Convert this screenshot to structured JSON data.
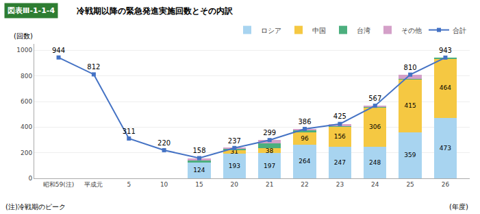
{
  "chart_data": {
    "type": "bar",
    "stacked": true,
    "title": "冷戦期以降の緊急発進実施回数とその内訳",
    "ylabel": "(回数)",
    "xlabel": "(年度)",
    "annotations": [
      {
        "text": "図表Ⅲ-1-1-4",
        "color": "#2e7d32"
      },
      {
        "text": "(注)冷戦期のピーク"
      }
    ],
    "categories": [
      "昭和59(注)",
      "平成元",
      "5",
      "10",
      "15",
      "20",
      "21",
      "22",
      "23",
      "24",
      "25",
      "26"
    ],
    "series": [
      {
        "name": "ロシア",
        "color": "#a8d4f0",
        "values": [
          null,
          null,
          null,
          null,
          124,
          193,
          197,
          264,
          247,
          248,
          359,
          473
        ],
        "value_labels": [
          null,
          null,
          null,
          null,
          "124",
          "193",
          "197",
          "264",
          "247",
          "248",
          "359",
          "473"
        ]
      },
      {
        "name": "中国",
        "color": "#f5c842",
        "values": [
          null,
          null,
          null,
          null,
          0,
          31,
          38,
          96,
          156,
          306,
          415,
          464
        ],
        "value_labels": [
          null,
          null,
          null,
          null,
          null,
          "31",
          "38",
          "96",
          "156",
          "306",
          "415",
          "464"
        ]
      },
      {
        "name": "台湾",
        "color": "#4caf7e",
        "values": [
          null,
          null,
          null,
          null,
          13,
          8,
          39,
          17,
          5,
          5,
          5,
          6
        ]
      },
      {
        "name": "その他",
        "color": "#d4a0c8",
        "values": [
          null,
          null,
          null,
          null,
          21,
          5,
          25,
          9,
          17,
          8,
          31,
          0
        ]
      },
      {
        "name": "合計",
        "type": "line",
        "marker": "square",
        "color": "#4472c4",
        "data_labels": true,
        "values": [
          944,
          812,
          311,
          220,
          158,
          237,
          299,
          386,
          425,
          567,
          810,
          943
        ]
      }
    ],
    "ylim": [
      0,
      1050
    ],
    "yticks": [
      0,
      200,
      400,
      600,
      800,
      1000
    ],
    "grid": true,
    "legend": "top"
  }
}
